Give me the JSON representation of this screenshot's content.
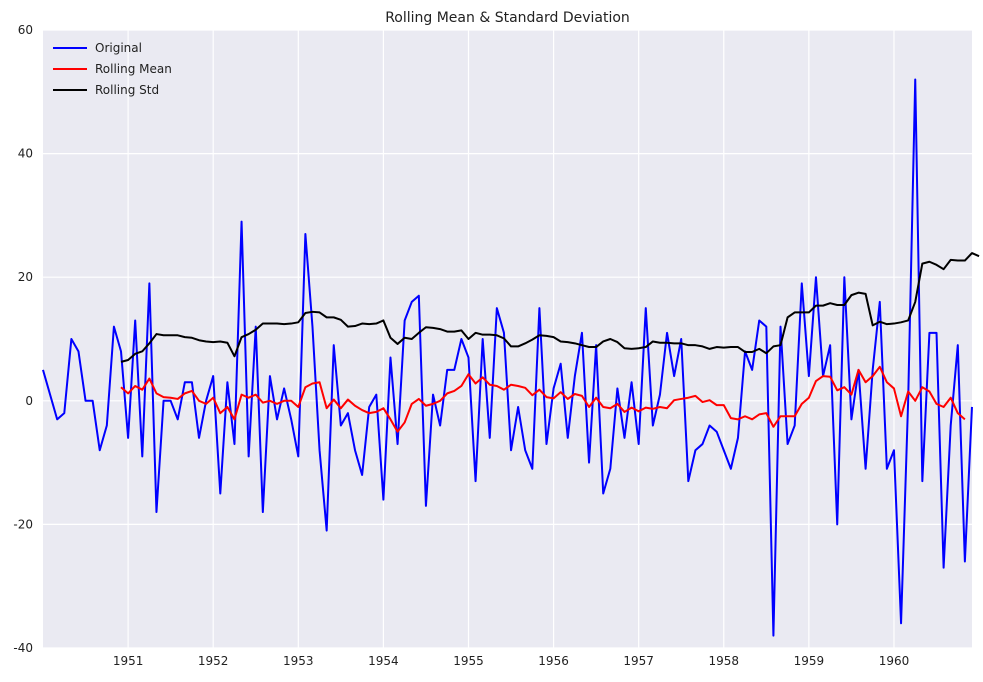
{
  "chart_data": {
    "type": "line",
    "title": "Rolling Mean & Standard Deviation",
    "xlabel": "",
    "ylabel": "",
    "xlim": [
      1950.0,
      1960.917
    ],
    "ylim": [
      -40,
      60
    ],
    "grid": true,
    "legend_position": "top-left",
    "x_start": 1950.0,
    "x_step": 0.0833333,
    "x_ticks": [
      1951,
      1952,
      1953,
      1954,
      1955,
      1956,
      1957,
      1958,
      1959,
      1960
    ],
    "y_ticks": [
      -40,
      -20,
      0,
      20,
      40,
      60
    ],
    "series": [
      {
        "name": "Original",
        "color": "#0000ff",
        "start_index": 0,
        "values": [
          5,
          1,
          -3,
          -2,
          10,
          8,
          0,
          0,
          -8,
          -4,
          12,
          8,
          -6,
          13,
          -9,
          19,
          -18,
          0,
          0,
          -3,
          3,
          3,
          -6,
          0,
          4,
          -15,
          3,
          -7,
          29,
          -9,
          12,
          -18,
          4,
          -3,
          2,
          -3,
          -9,
          27,
          12,
          -8,
          -21,
          9,
          -4,
          -2,
          -8,
          -12,
          -1,
          1,
          -16,
          7,
          -7,
          13,
          16,
          17,
          -17,
          1,
          -4,
          5,
          5,
          10,
          7,
          -13,
          10,
          -6,
          15,
          11,
          -8,
          -1,
          -8,
          -11,
          15,
          -7,
          2,
          6,
          -6,
          4,
          11,
          -10,
          9,
          -15,
          -11,
          2,
          -6,
          3,
          -7,
          15,
          -4,
          1,
          11,
          4,
          10,
          -13,
          -8,
          -7,
          -4,
          -5,
          -8,
          -11,
          -6,
          8,
          5,
          13,
          12,
          -38,
          12,
          -7,
          -4,
          19,
          4,
          20,
          4,
          9,
          -20,
          20,
          -3,
          5,
          -11,
          5,
          16,
          -11,
          -8,
          -36,
          0,
          52,
          -13,
          11,
          11,
          -27,
          -4,
          9,
          -26,
          -1
        ]
      },
      {
        "name": "Rolling Mean",
        "color": "#ff0000",
        "start_index": 11,
        "values": [
          2.2,
          1.2,
          2.4,
          1.8,
          3.6,
          1.2,
          0.6,
          0.5,
          0.3,
          1.2,
          1.6,
          0,
          -0.5,
          0.5,
          -2.0,
          -1.0,
          -3.0,
          1.0,
          0.5,
          1.0,
          -0.3,
          0,
          -0.5,
          0,
          0,
          -1.0,
          2.2,
          2.8,
          3.0,
          -1.2,
          0.2,
          -1.2,
          0.2,
          -0.8,
          -1.5,
          -2.0,
          -1.8,
          -1.2,
          -3.0,
          -5.0,
          -3.5,
          -0.5,
          0.3,
          -0.8,
          -0.5,
          0,
          1.2,
          1.6,
          2.4,
          4.3,
          2.8,
          3.8,
          2.6,
          2.4,
          1.8,
          2.6,
          2.4,
          2.1,
          0.9,
          1.8,
          0.6,
          0.4,
          1.4,
          0.3,
          1.1,
          0.8,
          -1.0,
          0.5,
          -1.0,
          -1.2,
          -0.5,
          -1.8,
          -1.1,
          -1.7,
          -1.1,
          -1.3,
          -1.0,
          -1.2,
          0.1,
          0.3,
          0.5,
          0.8,
          -0.2,
          0.1,
          -0.7,
          -0.7,
          -2.8,
          -3.0,
          -2.5,
          -3.0,
          -2.2,
          -2.0,
          -4.2,
          -2.5,
          -2.5,
          -2.5,
          -0.5,
          0.5,
          3.2,
          4.0,
          3.9,
          1.7,
          2.2,
          1.0,
          5.0,
          3.0,
          4.0,
          5.5,
          3.0,
          2.0,
          -2.5,
          1.5,
          0,
          2.2,
          1.5,
          -0.5,
          -1.0,
          0.5,
          -2.0,
          -3.0
        ]
      },
      {
        "name": "Rolling Std",
        "color": "#000000",
        "start_index": 11,
        "values": [
          6.3,
          6.6,
          7.6,
          8.0,
          9.3,
          10.8,
          10.6,
          10.6,
          10.6,
          10.3,
          10.2,
          9.8,
          9.6,
          9.5,
          9.6,
          9.4,
          7.2,
          10.3,
          10.8,
          11.5,
          12.5,
          12.5,
          12.5,
          12.4,
          12.5,
          12.7,
          14.2,
          14.4,
          14.3,
          13.5,
          13.5,
          13.1,
          12.0,
          12.1,
          12.5,
          12.4,
          12.5,
          13.0,
          10.2,
          9.2,
          10.2,
          10.0,
          11.0,
          11.9,
          11.8,
          11.6,
          11.2,
          11.2,
          11.4,
          10.0,
          11.0,
          10.7,
          10.7,
          10.6,
          10.1,
          8.8,
          8.8,
          9.3,
          9.9,
          10.6,
          10.5,
          10.3,
          9.6,
          9.5,
          9.3,
          9.0,
          8.7,
          8.7,
          9.6,
          10.0,
          9.5,
          8.5,
          8.4,
          8.5,
          8.7,
          9.6,
          9.4,
          9.4,
          9.3,
          9.3,
          9.0,
          9.0,
          8.8,
          8.4,
          8.7,
          8.6,
          8.7,
          8.7,
          7.9,
          7.9,
          8.4,
          7.7,
          8.8,
          9.0,
          13.5,
          14.3,
          14.3,
          14.3,
          15.4,
          15.4,
          15.8,
          15.5,
          15.5,
          17.1,
          17.5,
          17.3,
          12.2,
          12.8,
          12.4,
          12.5,
          12.7,
          13.0,
          16.0,
          22.2,
          22.5,
          22.0,
          21.3,
          22.8,
          22.7,
          22.7,
          23.9,
          23.4
        ]
      }
    ]
  }
}
